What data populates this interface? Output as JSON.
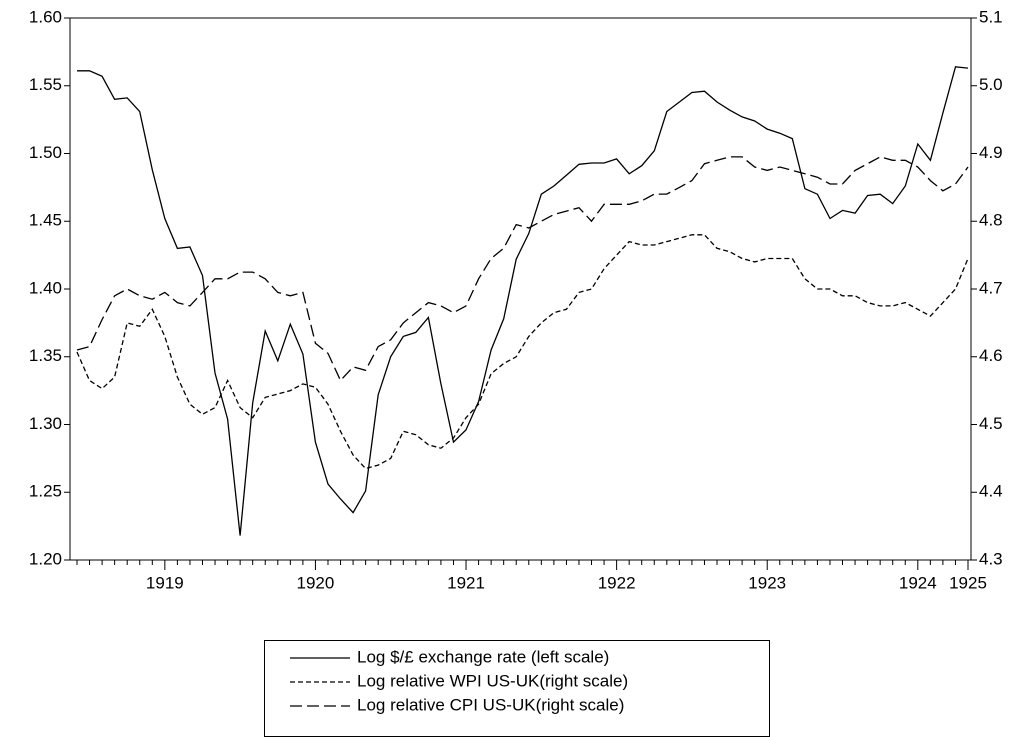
{
  "chart_data": {
    "type": "line",
    "categories": [
      null,
      null,
      null,
      null,
      null,
      null,
      null,
      "1919",
      null,
      null,
      null,
      null,
      null,
      null,
      null,
      null,
      null,
      null,
      null,
      "1920",
      null,
      null,
      null,
      null,
      null,
      null,
      null,
      null,
      null,
      null,
      null,
      "1921",
      null,
      null,
      null,
      null,
      null,
      null,
      null,
      null,
      null,
      null,
      null,
      "1922",
      null,
      null,
      null,
      null,
      null,
      null,
      null,
      null,
      null,
      null,
      null,
      "1923",
      null,
      null,
      null,
      null,
      null,
      null,
      null,
      null,
      null,
      null,
      null,
      "1924",
      null,
      null,
      null,
      "1925"
    ],
    "series": [
      {
        "name": "Log $/£ exchange rate (left scale)",
        "color": "#000000",
        "linestyle": "solid",
        "values": [
          1.561,
          1.561,
          1.557,
          1.54,
          1.541,
          1.531,
          1.488,
          1.452,
          1.43,
          1.431,
          1.41,
          1.338,
          1.304,
          1.218,
          1.316,
          1.369,
          1.347,
          1.374,
          1.352,
          1.287,
          1.256,
          1.245,
          1.235,
          1.251,
          1.322,
          1.35,
          1.365,
          1.368,
          1.379,
          1.33,
          1.287,
          1.296,
          1.317,
          1.355,
          1.378,
          1.422,
          1.441,
          1.47,
          1.476,
          1.484,
          1.492,
          1.493,
          1.493,
          1.496,
          1.485,
          1.491,
          1.502,
          1.531,
          1.538,
          1.545,
          1.546,
          1.538,
          1.532,
          1.527,
          1.524,
          1.518,
          1.515,
          1.511,
          1.474,
          1.47,
          1.452,
          1.458,
          1.456,
          1.469,
          1.47,
          1.463,
          1.476,
          1.507,
          1.495,
          1.53,
          1.564,
          1.563
        ]
      },
      {
        "name": "Log relative WPI US-UK(right scale)",
        "color": "#000000",
        "linestyle": "short-dash",
        "axis": "y2",
        "values": [
          4.607,
          4.565,
          4.553,
          4.57,
          4.65,
          4.645,
          4.67,
          4.63,
          4.57,
          4.53,
          4.515,
          4.525,
          4.565,
          4.525,
          4.51,
          4.54,
          4.545,
          4.55,
          4.56,
          4.555,
          4.53,
          4.49,
          4.455,
          4.435,
          4.44,
          4.45,
          4.49,
          4.485,
          4.47,
          4.465,
          4.48,
          4.51,
          4.53,
          4.575,
          4.59,
          4.6,
          4.63,
          4.65,
          4.665,
          4.67,
          4.695,
          4.7,
          4.73,
          4.75,
          4.77,
          4.765,
          4.765,
          4.77,
          4.775,
          4.78,
          4.78,
          4.76,
          4.755,
          4.745,
          4.74,
          4.745,
          4.745,
          4.745,
          4.715,
          4.7,
          4.7,
          4.69,
          4.69,
          4.68,
          4.675,
          4.675,
          4.68,
          4.67,
          4.66,
          4.68,
          4.7,
          4.745
        ]
      },
      {
        "name": "Log relative CPI US-UK(right scale)",
        "color": "#000000",
        "linestyle": "long-dash",
        "axis": "y2",
        "values": [
          4.61,
          4.615,
          4.655,
          4.69,
          4.7,
          4.69,
          4.685,
          4.695,
          4.68,
          4.675,
          4.695,
          4.715,
          4.715,
          4.725,
          4.725,
          4.715,
          4.695,
          4.69,
          4.695,
          4.62,
          4.605,
          4.565,
          4.585,
          4.58,
          4.615,
          4.625,
          4.65,
          4.665,
          4.68,
          4.675,
          4.665,
          4.675,
          4.715,
          4.745,
          4.76,
          4.795,
          4.79,
          4.8,
          4.81,
          4.815,
          4.82,
          4.8,
          4.825,
          4.825,
          4.825,
          4.83,
          4.84,
          4.84,
          4.85,
          4.86,
          4.885,
          4.89,
          4.895,
          4.895,
          4.88,
          4.875,
          4.88,
          4.875,
          4.87,
          4.865,
          4.855,
          4.855,
          4.875,
          4.885,
          4.895,
          4.89,
          4.89,
          4.88,
          4.86,
          4.845,
          4.855,
          4.88
        ]
      }
    ],
    "ylim": [
      1.2,
      1.6
    ],
    "yticks": [
      {
        "value": 1.2,
        "label": "1.20"
      },
      {
        "value": 1.25,
        "label": "1.25"
      },
      {
        "value": 1.3,
        "label": "1.30"
      },
      {
        "value": 1.35,
        "label": "1.35"
      },
      {
        "value": 1.4,
        "label": "1.40"
      },
      {
        "value": 1.45,
        "label": "1.45"
      },
      {
        "value": 1.5,
        "label": "1.50"
      },
      {
        "value": 1.55,
        "label": "1.55"
      },
      {
        "value": 1.6,
        "label": "1.60"
      }
    ],
    "y2lim": [
      4.3,
      5.1
    ],
    "y2ticks": [
      4.3,
      4.4,
      4.5,
      4.6,
      4.7,
      4.8,
      4.9,
      {
        "value": 5,
        "label": "5.0"
      },
      5.1
    ],
    "grid": false,
    "legend": "bottom"
  }
}
